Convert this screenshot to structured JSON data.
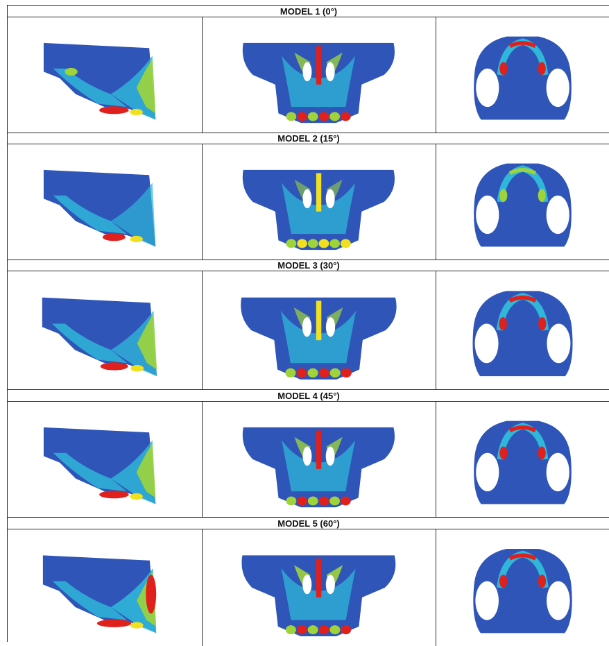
{
  "models": [
    {
      "title": "MODEL 1 (0°)",
      "views": [
        "lateral",
        "frontal",
        "occlusal"
      ]
    },
    {
      "title": "MODEL 2 (15°)",
      "views": [
        "lateral",
        "frontal",
        "occlusal"
      ]
    },
    {
      "title": "MODEL 3 (30°)",
      "views": [
        "lateral",
        "frontal",
        "occlusal"
      ]
    },
    {
      "title": "MODEL 4 (45°)",
      "views": [
        "lateral",
        "frontal",
        "occlusal"
      ]
    },
    {
      "title": "MODEL 5 (60°)",
      "views": [
        "lateral",
        "frontal",
        "occlusal"
      ]
    }
  ],
  "colors": {
    "base": "#2f55b8",
    "cyan": "#2fb6d8",
    "green": "#9ed43a",
    "yellow": "#f0e020",
    "red": "#e0201c",
    "grid_line": "#2b2b2b"
  }
}
